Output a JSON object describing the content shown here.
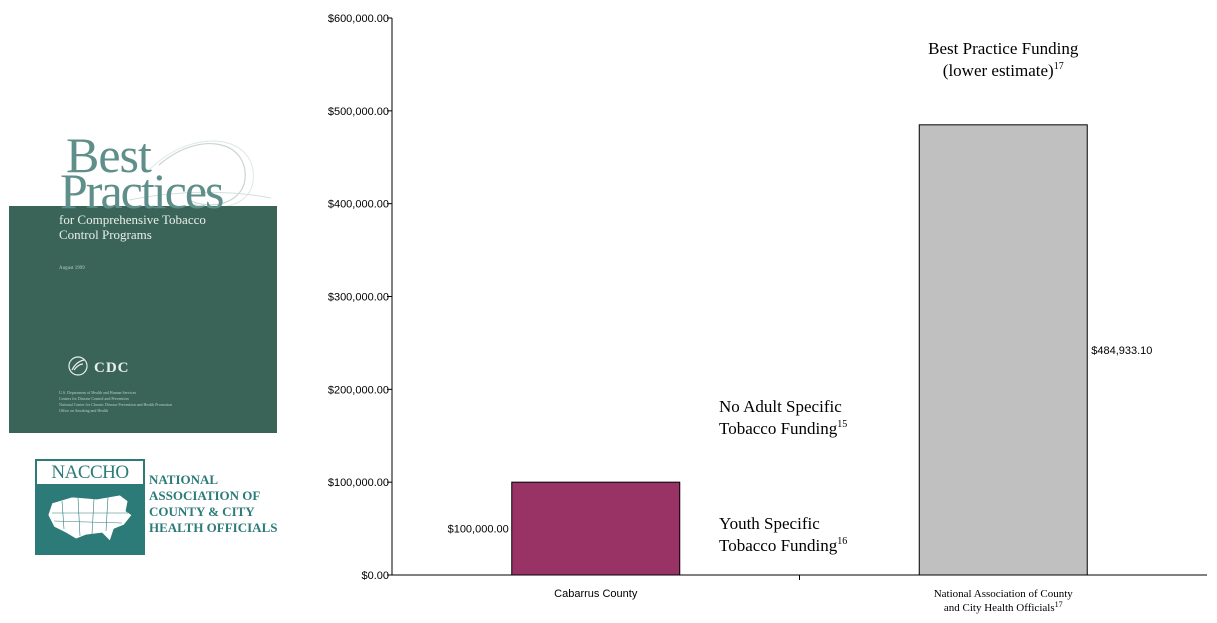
{
  "cover": {
    "title_line1": "Best",
    "title_line2": "Practices",
    "subtitle": "for Comprehensive Tobacco Control Programs",
    "date": "August 1999",
    "cdc": "CDC",
    "fine_print": "U.S. Department of Health and Human Services\nCenters for Disease Control and Prevention\nNational Center for Chronic Disease Prevention and Health Promotion\nOffice on Smoking and Health",
    "colors": {
      "green": "#3b6459",
      "title": "#5f8f8a"
    }
  },
  "naccho": {
    "acronym": "NACCHO",
    "name": "NATIONAL\nASSOCIATION OF\nCOUNTY & CITY\nHEALTH OFFICIALS",
    "color": "#2c7b78"
  },
  "chart_data": {
    "type": "bar",
    "categories": [
      {
        "label": "Cabarrus County",
        "sup": ""
      },
      {
        "label": "National Association of County\nand City Health Officials",
        "sup": "17"
      }
    ],
    "values": [
      100000.0,
      484933.1
    ],
    "value_labels": [
      "$100,000.00",
      "$484,933.10"
    ],
    "bar_colors": [
      "#993366",
      "#c0c0c0"
    ],
    "ylim": [
      0,
      600000
    ],
    "yticks": [
      0,
      100000,
      200000,
      300000,
      400000,
      500000,
      600000
    ],
    "ytick_labels": [
      "$0.00",
      "$100,000.00",
      "$200,000.00",
      "$300,000.00",
      "$400,000.00",
      "$500,000.00",
      "$600,000.00"
    ],
    "grid": false,
    "annotations": [
      {
        "lines": [
          "Best Practice Funding",
          "(lower estimate)"
        ],
        "sup": "17"
      },
      {
        "lines": [
          "No Adult Specific",
          "Tobacco Funding"
        ],
        "sup": "15"
      },
      {
        "lines": [
          "Youth Specific",
          "Tobacco Funding"
        ],
        "sup": "16"
      }
    ]
  }
}
